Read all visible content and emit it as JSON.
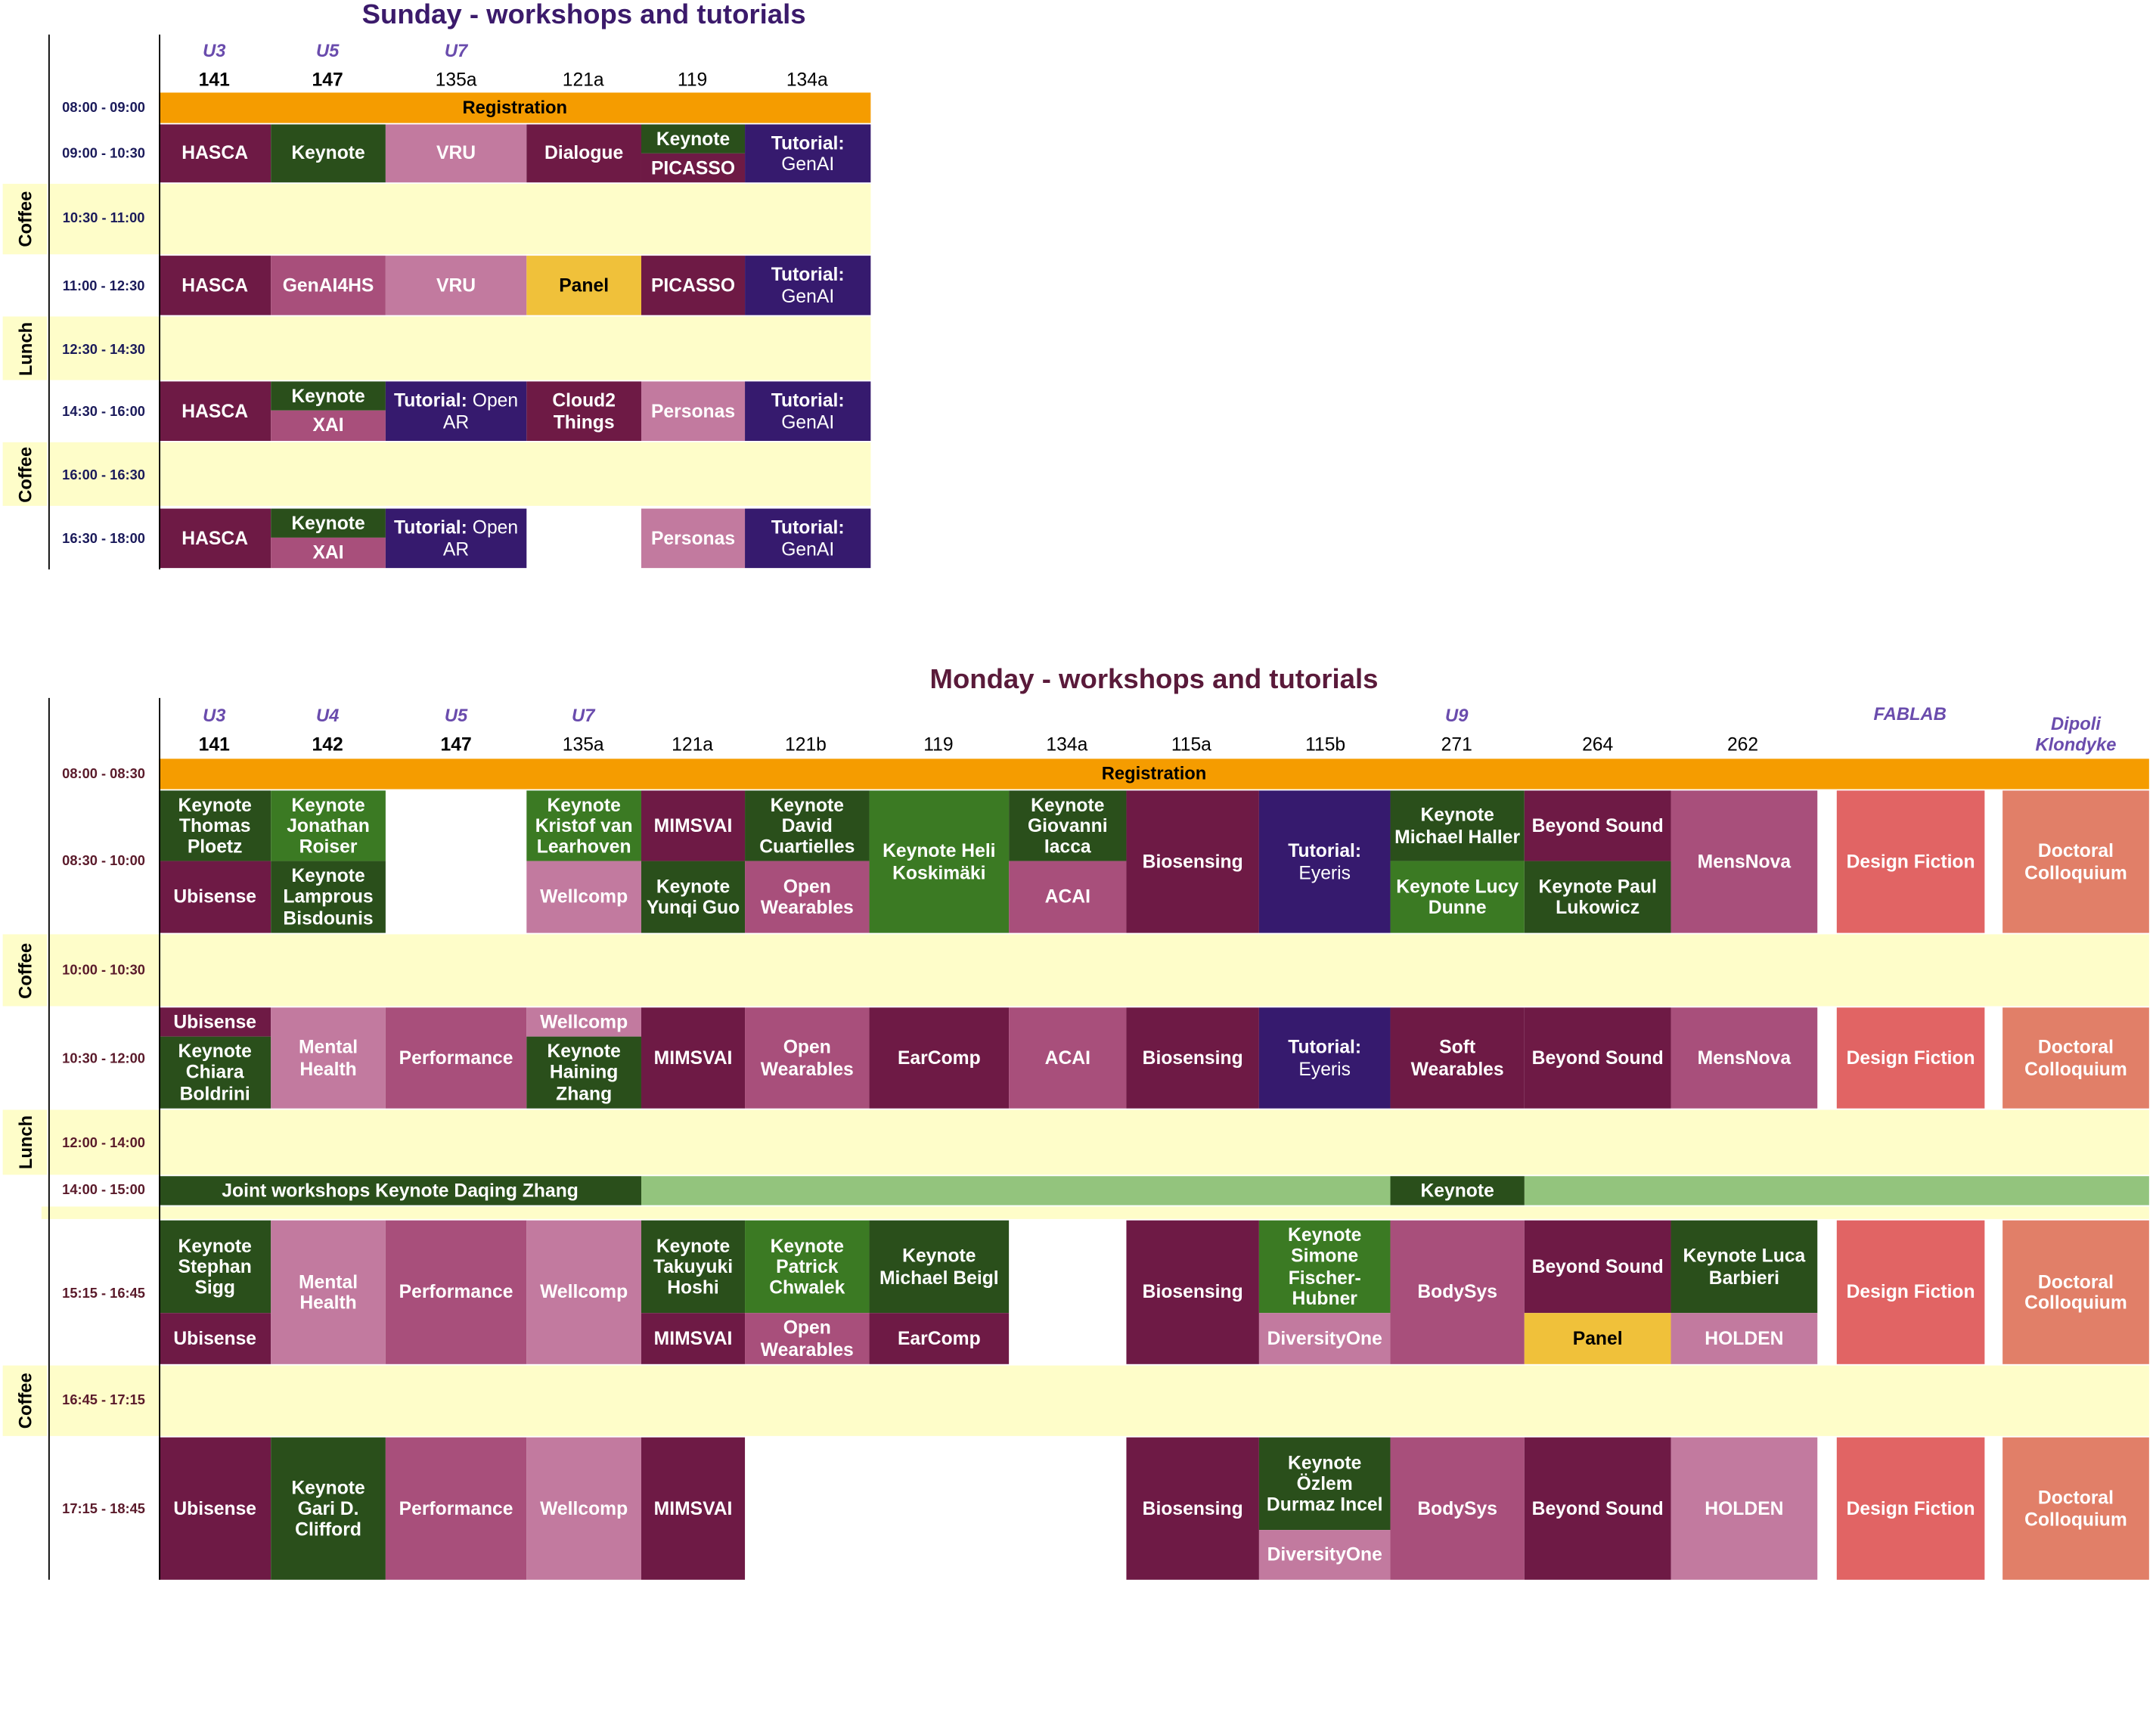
{
  "sunday": {
    "title": "Sunday - workshops and tutorials",
    "buildings": [
      "U3",
      "U5",
      "U7"
    ],
    "rooms": [
      "141",
      "147",
      "135a",
      "121a",
      "119",
      "134a"
    ],
    "times": [
      "08:00 - 09:00",
      "09:00 - 10:30",
      "10:30 - 11:00",
      "11:00 - 12:30",
      "12:30 - 14:30",
      "14:30 - 16:00",
      "16:00 - 16:30",
      "16:30 - 18:00"
    ],
    "breaks": [
      "Coffee",
      "Lunch",
      "Coffee"
    ],
    "registration": "Registration",
    "sessions": [
      "HASCA",
      "Keynote",
      "VRU",
      "Dialogue",
      "Keynote",
      "PICASSO",
      {
        "title": "Tutorial:",
        "detail": "GenAI"
      },
      "HASCA",
      "GenAI4HS",
      "VRU",
      "Panel",
      "PICASSO",
      {
        "title": "Tutorial:",
        "detail": "GenAI"
      },
      "HASCA",
      "Keynote",
      "XAI",
      {
        "title": "Tutorial:",
        "detail": "Open AR"
      },
      "Cloud2 Things",
      "Personas",
      {
        "title": "Tutorial:",
        "detail": "GenAI"
      },
      "HASCA",
      "Keynote",
      "XAI",
      {
        "title": "Tutorial:",
        "detail": "Open AR"
      },
      "Personas",
      {
        "title": "Tutorial:",
        "detail": "GenAI"
      }
    ]
  },
  "monday": {
    "title": "Monday - workshops and tutorials",
    "buildings": [
      "U3",
      "U4",
      "U5",
      "U7",
      "U9",
      "FABLAB",
      "Dipoli Klondyke"
    ],
    "rooms": [
      "141",
      "142",
      "147",
      "135a",
      "121a",
      "121b",
      "119",
      "134a",
      "115a",
      "115b",
      "271",
      "264",
      "262"
    ],
    "times": [
      "08:00 - 08:30",
      "08:30 - 10:00",
      "10:00 - 10:30",
      "10:30 - 12:00",
      "12:00 - 14:00",
      "14:00 - 15:00",
      "15:15 - 16:45",
      "16:45 - 17:15",
      "17:15 - 18:45"
    ],
    "breaks": [
      "Coffee",
      "Lunch",
      "Coffee"
    ],
    "registration": "Registration",
    "sessions": [
      "Keynote Thomas Ploetz",
      "Ubisense",
      "Keynote Jonathan Roiser",
      "Keynote Lamprous Bisdounis",
      "Keynote Kristof van Learhoven",
      "Wellcomp",
      "MIMSVAI",
      "Keynote Yunqi Guo",
      "Keynote David Cuartielles",
      "Open Wearables",
      "Keynote Heli Koskimäki",
      "Keynote Giovanni Iacca",
      "ACAI",
      "Biosensing",
      {
        "title": "Tutorial:",
        "detail": "Eyeris"
      },
      "Keynote Michael Haller",
      "Keynote Lucy Dunne",
      "Beyond Sound",
      "Keynote Paul Lukowicz",
      "MensNova",
      "Design Fiction",
      "Doctoral Colloquium",
      "Ubisense",
      "Keynote Chiara Boldrini",
      "Mental Health",
      "Performance",
      "Wellcomp",
      "Keynote Haining Zhang",
      "MIMSVAI",
      "Open Wearables",
      "EarComp",
      "ACAI",
      "Biosensing",
      {
        "title": "Tutorial:",
        "detail": "Eyeris"
      },
      "Soft Wearables",
      "Beyond Sound",
      "MensNova",
      "Design Fiction",
      "Doctoral Colloquium",
      "Joint workshops Keynote Daqing Zhang",
      "Keynote",
      "Keynote Stephan Sigg",
      "Ubisense",
      "Mental Health",
      "Performance",
      "Wellcomp",
      "Keynote Takuyuki Hoshi",
      "MIMSVAI",
      "Keynote Patrick Chwalek",
      "Open Wearables",
      "Keynote Michael Beigl",
      "EarComp",
      "Biosensing",
      "Keynote Simone Fischer-Hubner",
      "DiversityOne",
      "BodySys",
      "Beyond Sound",
      "Panel",
      "Keynote Luca Barbieri",
      "HOLDEN",
      "Design Fiction",
      "Doctoral Colloquium",
      "Ubisense",
      "Keynote Gari D. Clifford",
      "Performance",
      "Wellcomp",
      "MIMSVAI",
      "Biosensing",
      "Keynote Özlem Durmaz Incel",
      "DiversityOne",
      "BodySys",
      "Beyond Sound",
      "HOLDEN",
      "Design Fiction",
      "Doctoral Colloquium"
    ]
  }
}
